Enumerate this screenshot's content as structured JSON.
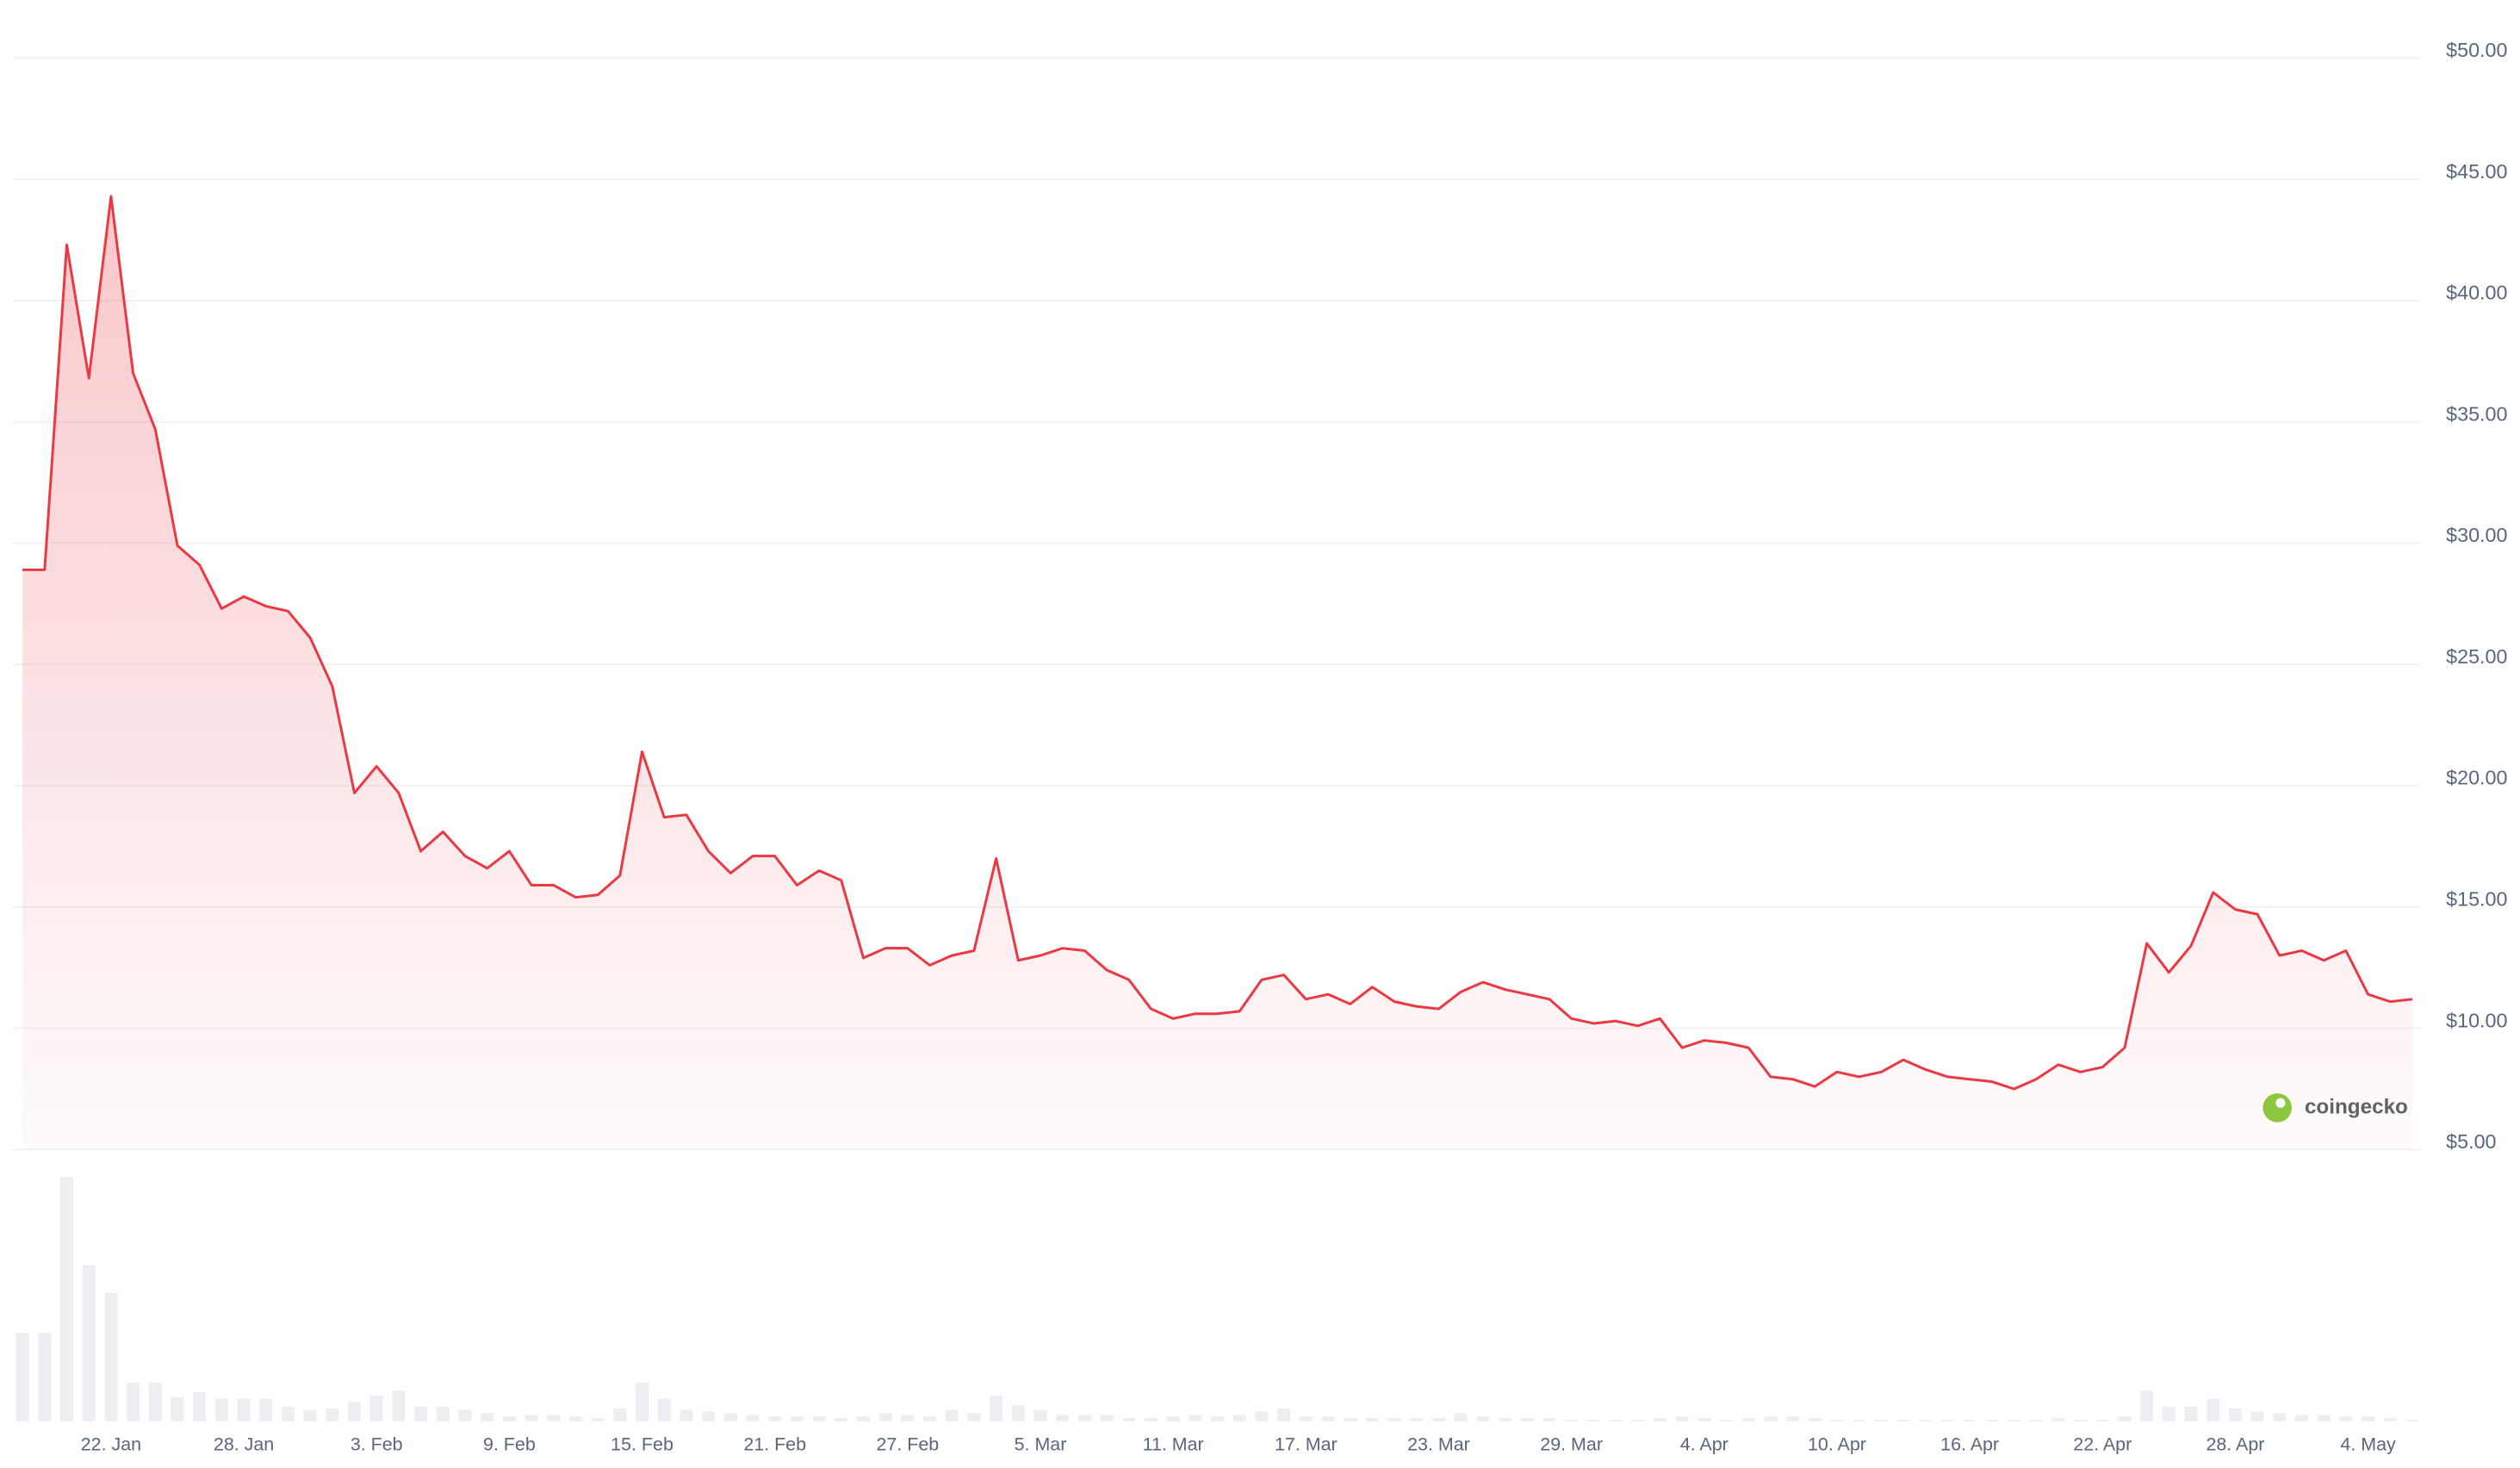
{
  "chart_data": {
    "type": "area",
    "categories": [
      null,
      null,
      null,
      null,
      "22. Jan",
      null,
      null,
      null,
      null,
      null,
      "28. Jan",
      null,
      null,
      null,
      null,
      null,
      "3. Feb",
      null,
      null,
      null,
      null,
      null,
      "9. Feb",
      null,
      null,
      null,
      null,
      null,
      "15. Feb",
      null,
      null,
      null,
      null,
      null,
      "21. Feb",
      null,
      null,
      null,
      null,
      null,
      "27. Feb",
      null,
      null,
      null,
      null,
      null,
      "5. Mar",
      null,
      null,
      null,
      null,
      null,
      "11. Mar",
      null,
      null,
      null,
      null,
      null,
      "17. Mar",
      null,
      null,
      null,
      null,
      null,
      "23. Mar",
      null,
      null,
      null,
      null,
      null,
      "29. Mar",
      null,
      null,
      null,
      null,
      null,
      "4. Apr",
      null,
      null,
      null,
      null,
      null,
      "10. Apr",
      null,
      null,
      null,
      null,
      null,
      "16. Apr",
      null,
      null,
      null,
      null,
      null,
      "22. Apr",
      null,
      null,
      null,
      null,
      null,
      "28. Apr",
      null,
      null,
      null,
      null,
      null,
      "4. May",
      null,
      null
    ],
    "series": [
      {
        "color": "#ea3943",
        "values": [
          28.9,
          28.9,
          42.3,
          36.8,
          44.3,
          37.0,
          34.7,
          29.9,
          29.1,
          27.3,
          27.8,
          27.4,
          27.2,
          26.1,
          24.1,
          19.7,
          20.8,
          19.7,
          17.3,
          18.1,
          17.1,
          16.6,
          17.3,
          15.9,
          15.9,
          15.4,
          15.5,
          16.3,
          21.4,
          18.7,
          18.8,
          17.3,
          16.4,
          17.1,
          17.1,
          15.9,
          16.5,
          16.1,
          12.9,
          13.3,
          13.3,
          12.6,
          13.0,
          13.2,
          17.0,
          12.8,
          13.0,
          13.3,
          13.2,
          12.4,
          12.0,
          10.8,
          10.4,
          10.6,
          10.6,
          10.7,
          12.0,
          12.2,
          11.2,
          11.4,
          11.0,
          11.7,
          11.1,
          10.9,
          10.8,
          11.5,
          11.9,
          11.6,
          11.4,
          11.2,
          10.4,
          10.2,
          10.3,
          10.1,
          10.4,
          9.2,
          9.5,
          9.4,
          9.2,
          8.0,
          7.9,
          7.6,
          8.2,
          8.0,
          8.2,
          8.7,
          8.3,
          8.0,
          7.9,
          7.8,
          7.5,
          7.9,
          8.5,
          8.2,
          8.4,
          9.2,
          13.5,
          12.3,
          13.4,
          15.6,
          14.9,
          14.7,
          13.0,
          13.2,
          12.8,
          13.2,
          11.4,
          11.1,
          11.2
        ]
      }
    ],
    "volume": {
      "color": "#eceef2",
      "values": [
        55,
        55,
        152,
        97,
        80,
        24,
        24,
        15,
        18,
        14,
        14,
        14,
        9,
        7,
        8,
        12,
        16,
        19,
        9,
        9,
        7,
        5,
        3,
        4,
        4,
        3,
        2,
        8,
        24,
        14,
        7,
        6,
        5,
        4,
        3,
        3,
        3,
        2,
        3,
        5,
        4,
        3,
        7,
        5,
        16,
        10,
        7,
        4,
        4,
        4,
        2,
        2,
        3,
        4,
        3,
        4,
        6,
        8,
        3,
        3,
        2,
        2,
        2,
        2,
        2,
        5,
        3,
        2,
        2,
        2,
        1,
        1,
        1,
        1,
        2,
        3,
        2,
        1,
        2,
        3,
        3,
        2,
        1,
        1,
        1,
        1,
        1,
        1,
        1,
        1,
        1,
        1,
        2,
        1,
        1,
        3,
        19,
        9,
        9,
        14,
        8,
        6,
        5,
        4,
        4,
        3,
        3,
        2,
        1
      ]
    },
    "ylim": [
      5,
      50
    ],
    "yticks": [
      {
        "value": 5,
        "label": "$5.00"
      },
      {
        "value": 10,
        "label": "$10.00"
      },
      {
        "value": 15,
        "label": "$15.00"
      },
      {
        "value": 20,
        "label": "$20.00"
      },
      {
        "value": 25,
        "label": "$25.00"
      },
      {
        "value": 30,
        "label": "$30.00"
      },
      {
        "value": 35,
        "label": "$35.00"
      },
      {
        "value": 40,
        "label": "$40.00"
      },
      {
        "value": 45,
        "label": "$45.00"
      },
      {
        "value": 50,
        "label": "$50.00"
      }
    ],
    "grid": true,
    "watermark": "coingecko"
  }
}
